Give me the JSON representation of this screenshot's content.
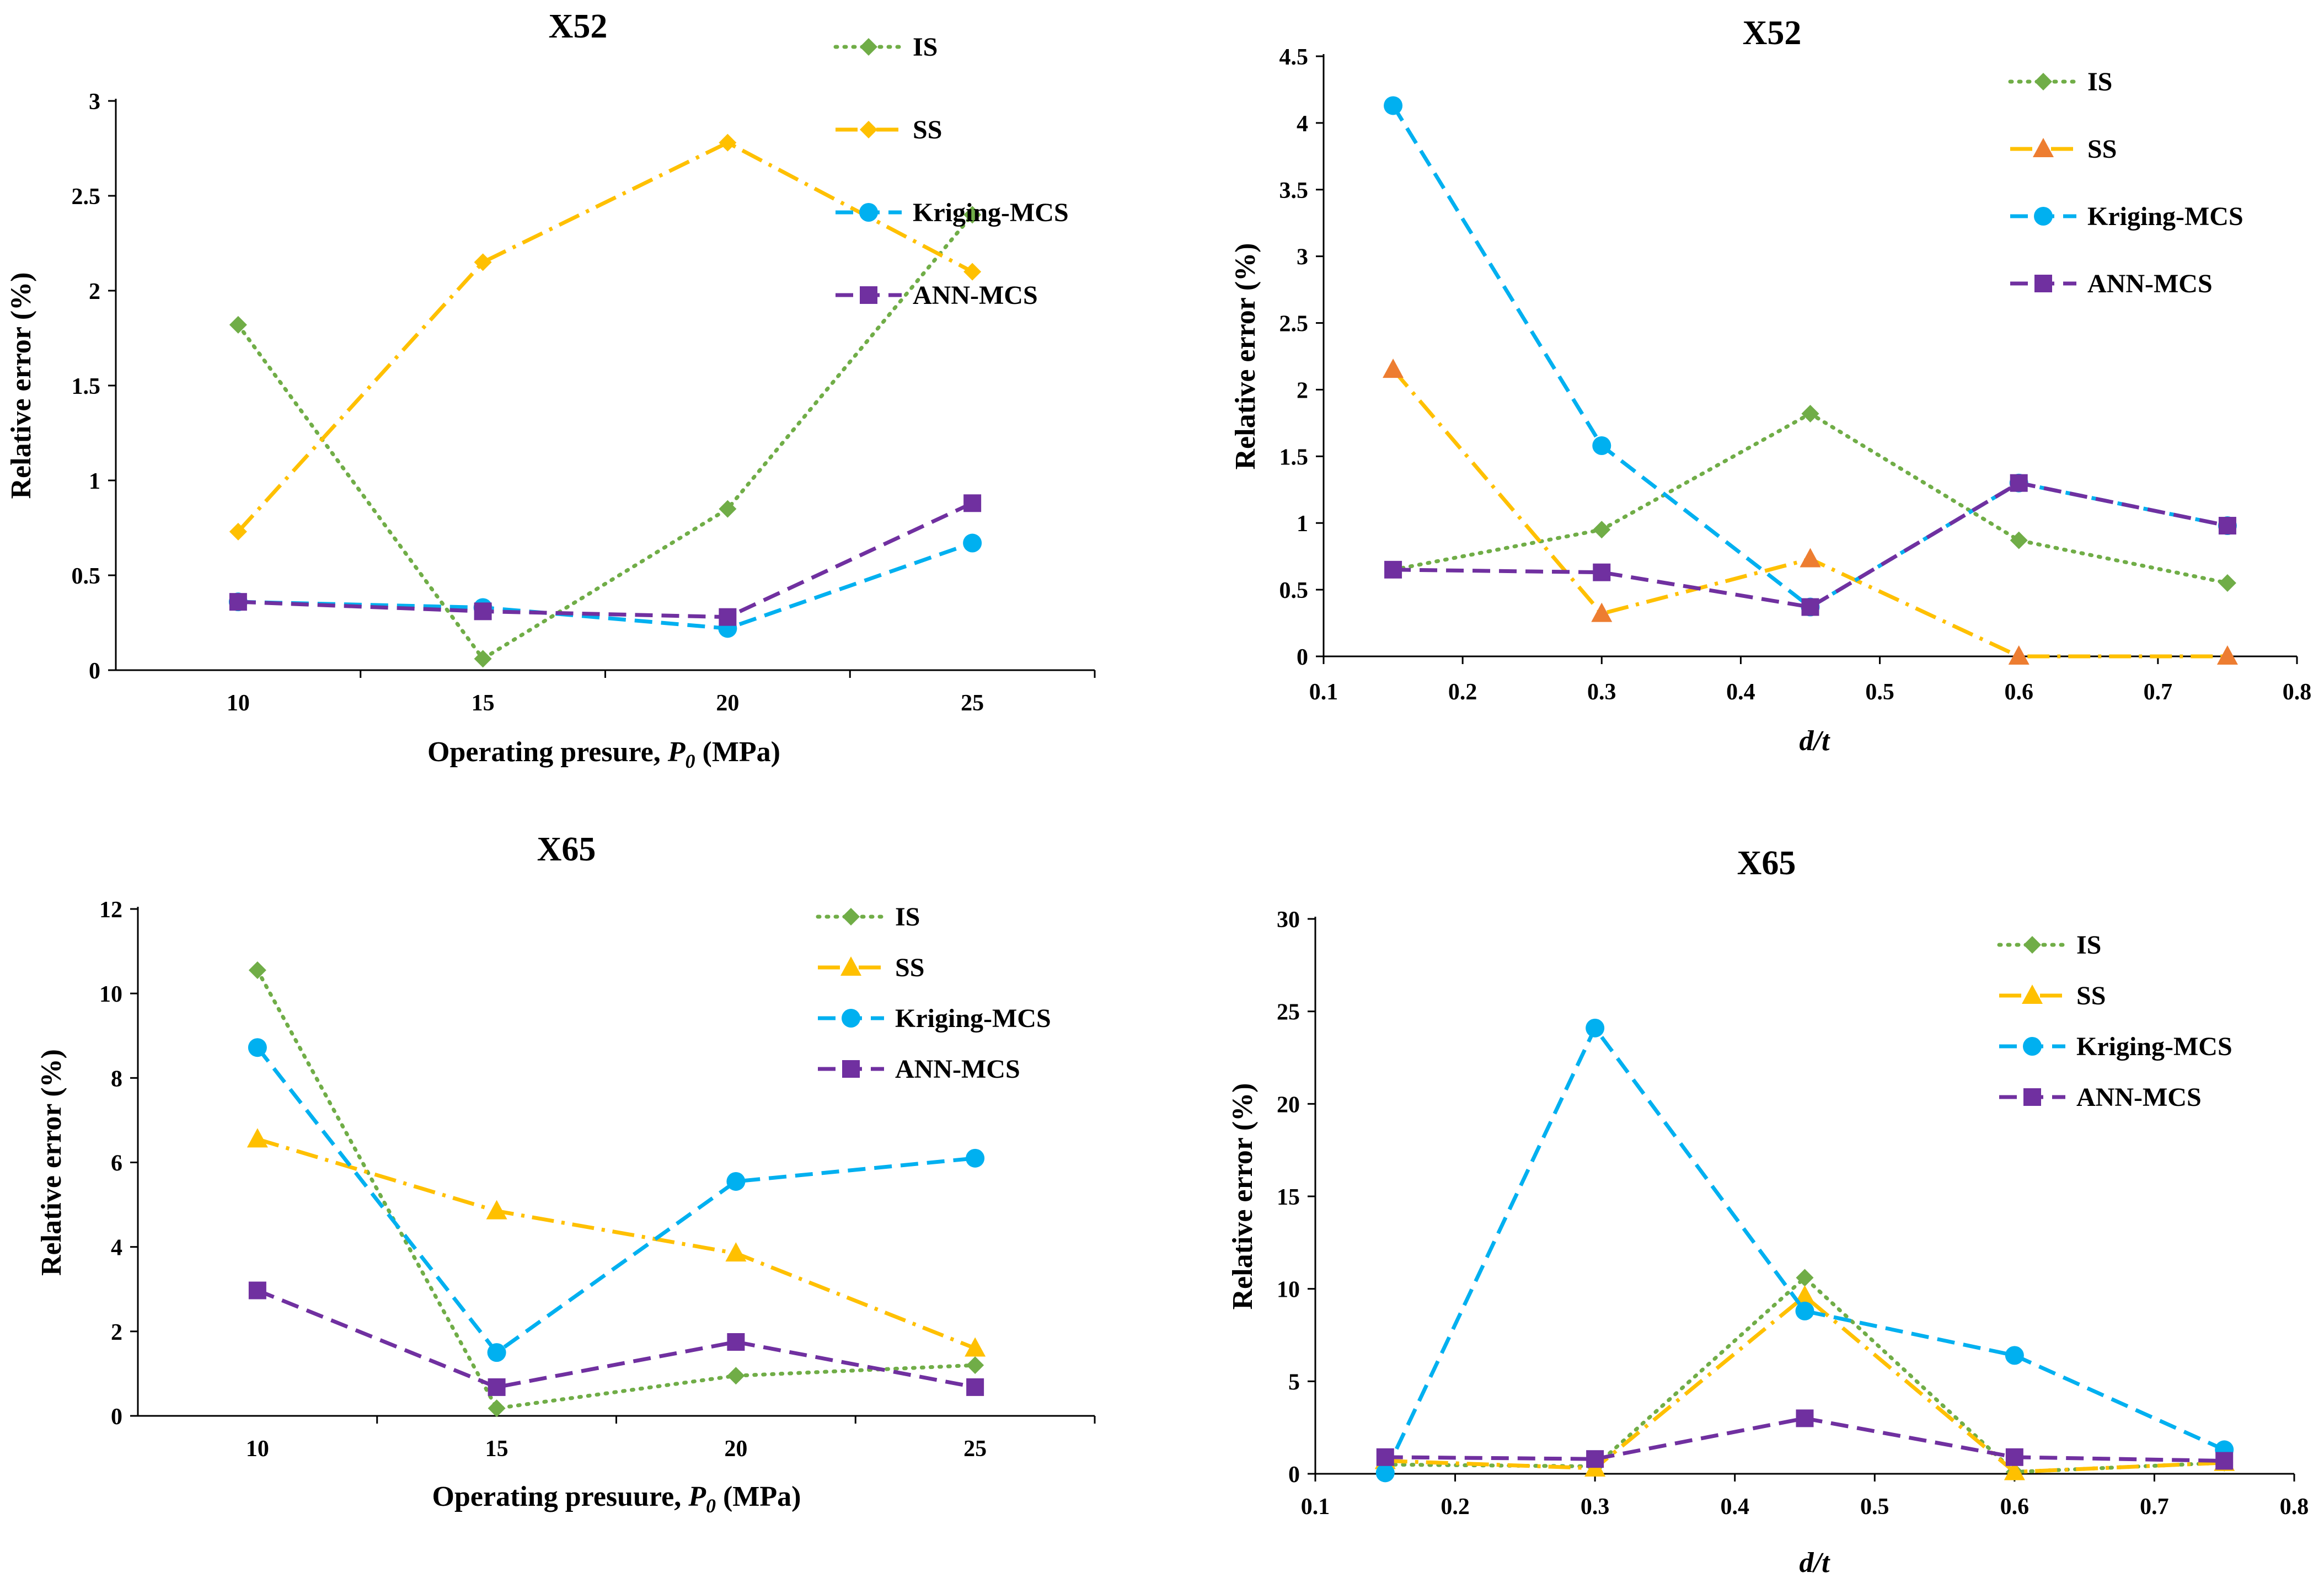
{
  "legend_labels": [
    "IS",
    "SS",
    "Kriging-MCS",
    "ANN-MCS"
  ],
  "colors": {
    "IS": "#70ad47",
    "SS": "#ffc000",
    "Kriging-MCS": "#00b0f0",
    "ANN-MCS": "#7030a0",
    "SS_triangle_alt": "#ed7d31",
    "axis": "#000000"
  },
  "chart_data": [
    {
      "type": "line",
      "title": "X52",
      "xlabel": "Operating presure, P0 (MPa)",
      "xlabel_parts": {
        "main": "Operating presure, ",
        "var": "P",
        "sub": "0",
        "unit": " (MPa)"
      },
      "ylabel": "Relative error (%)",
      "x_kind": "category",
      "categories": [
        "10",
        "15",
        "20",
        "25"
      ],
      "ylim": [
        0,
        3
      ],
      "yticks": [
        "0",
        "0.5",
        "1",
        "1.5",
        "2",
        "2.5",
        "3"
      ],
      "legend_position": "top-right",
      "series": [
        {
          "name": "IS",
          "marker": "diamond",
          "dash": "dotted",
          "values": [
            1.82,
            0.06,
            0.85,
            2.4
          ]
        },
        {
          "name": "SS",
          "marker": "diamond",
          "dash": "dashdot",
          "values": [
            0.73,
            2.15,
            2.78,
            2.1
          ]
        },
        {
          "name": "Kriging-MCS",
          "marker": "circle",
          "dash": "dashed",
          "values": [
            0.36,
            0.33,
            0.22,
            0.67
          ]
        },
        {
          "name": "ANN-MCS",
          "marker": "square",
          "dash": "dashed",
          "values": [
            0.36,
            0.31,
            0.28,
            0.88
          ]
        }
      ]
    },
    {
      "type": "line",
      "title": "X52",
      "xlabel": "d/t",
      "ylabel": "Relative error (%)",
      "x_kind": "value",
      "xlim": [
        0.1,
        0.8
      ],
      "xticks": [
        "0.1",
        "0.2",
        "0.3",
        "0.4",
        "0.5",
        "0.6",
        "0.7",
        "0.8"
      ],
      "x": [
        0.15,
        0.3,
        0.45,
        0.6,
        0.75
      ],
      "ylim": [
        0,
        4.5
      ],
      "yticks": [
        "0",
        "0.5",
        "1",
        "1.5",
        "2",
        "2.5",
        "3",
        "3.5",
        "4",
        "4.5"
      ],
      "legend_position": "top-right",
      "series": [
        {
          "name": "IS",
          "marker": "diamond",
          "dash": "dotted",
          "values": [
            0.65,
            0.95,
            1.82,
            0.87,
            0.55
          ]
        },
        {
          "name": "SS",
          "marker": "triangle",
          "dash": "dashdot",
          "marker_color": "#ed7d31",
          "values": [
            2.15,
            0.32,
            0.73,
            0.0,
            0.0
          ]
        },
        {
          "name": "Kriging-MCS",
          "marker": "circle",
          "dash": "dashed",
          "values": [
            4.13,
            1.58,
            0.37,
            1.3,
            0.98
          ]
        },
        {
          "name": "ANN-MCS",
          "marker": "square",
          "dash": "dashed",
          "values": [
            0.65,
            0.63,
            0.37,
            1.3,
            0.98
          ]
        }
      ]
    },
    {
      "type": "line",
      "title": "X65",
      "xlabel": "Operating presuure, P0 (MPa)",
      "xlabel_parts": {
        "main": "Operating presuure, ",
        "var": "P",
        "sub": "0",
        "unit": " (MPa)"
      },
      "ylabel": "Relative error (%)",
      "x_kind": "category",
      "categories": [
        "10",
        "15",
        "20",
        "25"
      ],
      "ylim": [
        0,
        12
      ],
      "yticks": [
        "0",
        "2",
        "4",
        "6",
        "8",
        "10",
        "12"
      ],
      "legend_position": "top-right",
      "series": [
        {
          "name": "IS",
          "marker": "diamond",
          "dash": "dotted",
          "values": [
            10.55,
            0.18,
            0.95,
            1.2
          ]
        },
        {
          "name": "SS",
          "marker": "triangle",
          "dash": "dashdot",
          "values": [
            6.55,
            4.85,
            3.85,
            1.6
          ]
        },
        {
          "name": "Kriging-MCS",
          "marker": "circle",
          "dash": "dashed",
          "values": [
            8.72,
            1.5,
            5.55,
            6.1
          ]
        },
        {
          "name": "ANN-MCS",
          "marker": "square",
          "dash": "dashed",
          "values": [
            2.97,
            0.68,
            1.75,
            0.68
          ]
        }
      ]
    },
    {
      "type": "line",
      "title": "X65",
      "xlabel": "d/t",
      "ylabel": "Relative error (%)",
      "x_kind": "value",
      "xlim": [
        0.1,
        0.8
      ],
      "xticks": [
        "0.1",
        "0.2",
        "0.3",
        "0.4",
        "0.5",
        "0.6",
        "0.7",
        "0.8"
      ],
      "x": [
        0.15,
        0.3,
        0.45,
        0.6,
        0.75
      ],
      "ylim": [
        0,
        30
      ],
      "yticks": [
        "0",
        "5",
        "10",
        "15",
        "20",
        "25",
        "30"
      ],
      "legend_position": "top-right",
      "series": [
        {
          "name": "IS",
          "marker": "diamond",
          "dash": "dotted",
          "values": [
            0.5,
            0.4,
            10.6,
            0.1,
            0.6
          ]
        },
        {
          "name": "SS",
          "marker": "triangle",
          "dash": "dashdot",
          "values": [
            0.7,
            0.3,
            9.6,
            0.1,
            0.6
          ]
        },
        {
          "name": "Kriging-MCS",
          "marker": "circle",
          "dash": "dashed",
          "values": [
            0.05,
            24.1,
            8.8,
            6.4,
            1.3
          ]
        },
        {
          "name": "ANN-MCS",
          "marker": "square",
          "dash": "dashed",
          "values": [
            0.9,
            0.8,
            3.0,
            0.9,
            0.7
          ]
        }
      ]
    }
  ]
}
